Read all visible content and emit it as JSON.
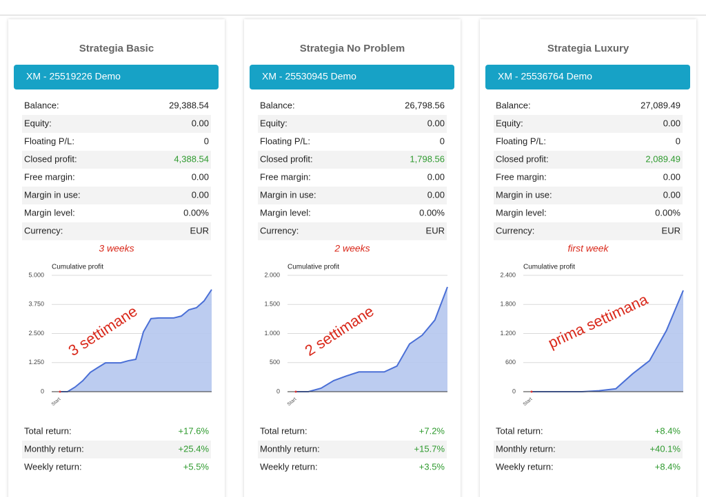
{
  "cards": [
    {
      "title": "Strategia Basic",
      "account": "XM - 25519226 Demo",
      "rows": [
        {
          "label": "Balance:",
          "value": "29,388.54"
        },
        {
          "label": "Equity:",
          "value": "0.00"
        },
        {
          "label": "Floating P/L:",
          "value": "0"
        },
        {
          "label": "Closed profit:",
          "value": "4,388.54",
          "color": "#2e9a2e"
        },
        {
          "label": "Free margin:",
          "value": "0.00"
        },
        {
          "label": "Margin in use:",
          "value": "0.00"
        },
        {
          "label": "Margin level:",
          "value": "0.00%"
        },
        {
          "label": "Currency:",
          "value": "EUR"
        }
      ],
      "note": "3 weeks",
      "chart_data": {
        "type": "area",
        "title": "Cumulative profit",
        "annotation": "3 settimane",
        "color": "#4a6fd6",
        "categories": [
          "Start",
          null,
          null,
          null,
          null,
          null,
          null,
          null,
          null,
          null,
          null,
          null,
          null,
          null,
          null,
          null,
          null,
          null,
          null,
          null,
          null
        ],
        "values": [
          0,
          0,
          200,
          470,
          830,
          1040,
          1240,
          1240,
          1240,
          1330,
          1390,
          2570,
          3140,
          3170,
          3170,
          3170,
          3250,
          3520,
          3610,
          3900,
          4390
        ],
        "ylim": [
          0,
          5000
        ],
        "yticks": [
          0,
          {
            "value": 1250,
            "label": "1.250"
          },
          {
            "value": 2500,
            "label": "2.500"
          },
          {
            "value": 3750,
            "label": "3.750"
          },
          {
            "value": 5000,
            "label": "5.000"
          }
        ],
        "grid": true
      },
      "footer": [
        {
          "label": "Total return:",
          "value": "+17.6%",
          "color": "#2e9a2e"
        },
        {
          "label": "Monthly return:",
          "value": "+25.4%",
          "color": "#2e9a2e"
        },
        {
          "label": "Weekly return:",
          "value": "+5.5%",
          "color": "#2e9a2e"
        }
      ]
    },
    {
      "title": "Strategia No Problem",
      "account": "XM - 25530945 Demo",
      "rows": [
        {
          "label": "Balance:",
          "value": "26,798.56"
        },
        {
          "label": "Equity:",
          "value": "0.00"
        },
        {
          "label": "Floating P/L:",
          "value": "0"
        },
        {
          "label": "Closed profit:",
          "value": "1,798.56",
          "color": "#2e9a2e"
        },
        {
          "label": "Free margin:",
          "value": "0.00"
        },
        {
          "label": "Margin in use:",
          "value": "0.00"
        },
        {
          "label": "Margin level:",
          "value": "0.00%"
        },
        {
          "label": "Currency:",
          "value": "EUR"
        }
      ],
      "note": "2 weeks",
      "chart_data": {
        "type": "area",
        "title": "Cumulative profit",
        "annotation": "2 settimane",
        "color": "#4a6fd6",
        "categories": [
          "Start",
          null,
          null,
          null,
          null,
          null,
          null,
          null,
          null,
          null,
          null,
          null,
          null
        ],
        "values": [
          0,
          0,
          60,
          190,
          270,
          340,
          340,
          340,
          440,
          820,
          970,
          1230,
          1800
        ],
        "ylim": [
          0,
          2000
        ],
        "yticks": [
          0,
          500,
          {
            "value": 1000,
            "label": "1.000"
          },
          {
            "value": 1500,
            "label": "1.500"
          },
          {
            "value": 2000,
            "label": "2.000"
          }
        ],
        "grid": true
      },
      "footer": [
        {
          "label": "Total return:",
          "value": "+7.2%",
          "color": "#2e9a2e"
        },
        {
          "label": "Monthly return:",
          "value": "+15.7%",
          "color": "#2e9a2e"
        },
        {
          "label": "Weekly return:",
          "value": "+3.5%",
          "color": "#2e9a2e"
        }
      ]
    },
    {
      "title": "Strategia Luxury",
      "account": "XM - 25536764 Demo",
      "rows": [
        {
          "label": "Balance:",
          "value": "27,089.49"
        },
        {
          "label": "Equity:",
          "value": "0.00"
        },
        {
          "label": "Floating P/L:",
          "value": "0"
        },
        {
          "label": "Closed profit:",
          "value": "2,089.49",
          "color": "#2e9a2e"
        },
        {
          "label": "Free margin:",
          "value": "0.00"
        },
        {
          "label": "Margin in use:",
          "value": "0.00"
        },
        {
          "label": "Margin level:",
          "value": "0.00%"
        },
        {
          "label": "Currency:",
          "value": "EUR"
        }
      ],
      "note": "first week",
      "chart_data": {
        "type": "area",
        "title": "Cumulative profit",
        "annotation": "prima settimana",
        "color": "#4a6fd6",
        "categories": [
          "Start",
          null,
          null,
          null,
          null,
          null,
          null,
          null,
          null,
          null
        ],
        "values": [
          0,
          0,
          0,
          0,
          20,
          60,
          370,
          640,
          1260,
          2090
        ],
        "ylim": [
          0,
          2400
        ],
        "yticks": [
          0,
          600,
          {
            "value": 1200,
            "label": "1.200"
          },
          {
            "value": 1800,
            "label": "1.800"
          },
          {
            "value": 2400,
            "label": "2.400"
          }
        ],
        "grid": true
      },
      "footer": [
        {
          "label": "Total return:",
          "value": "+8.4%",
          "color": "#2e9a2e"
        },
        {
          "label": "Monthly return:",
          "value": "+40.1%",
          "color": "#2e9a2e"
        },
        {
          "label": "Weekly return:",
          "value": "+8.4%",
          "color": "#2e9a2e"
        }
      ]
    }
  ]
}
